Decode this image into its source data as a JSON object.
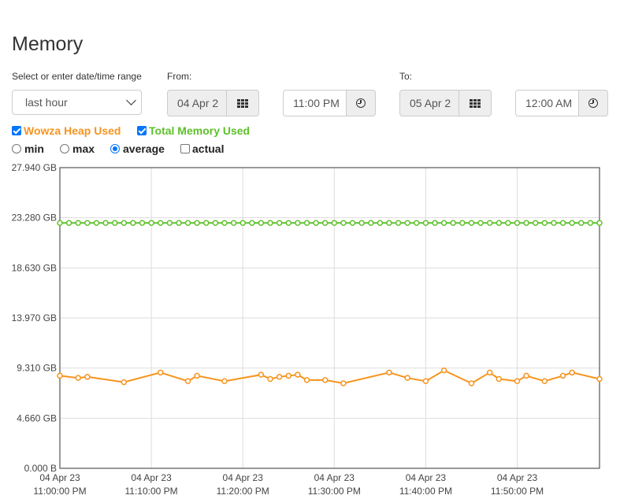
{
  "page": {
    "title": "Memory"
  },
  "range": {
    "label": "Select or enter date/time range",
    "selected": "last hour"
  },
  "from": {
    "label": "From:",
    "date": "04 Apr 2",
    "time": "11:00 PM"
  },
  "to": {
    "label": "To:",
    "date": "05 Apr 2",
    "time": "12:00 AM"
  },
  "series_toggles": [
    {
      "label": "Wowza Heap Used",
      "checked": true,
      "color": "#f7941d"
    },
    {
      "label": "Total Memory Used",
      "checked": true,
      "color": "#5ec12a"
    }
  ],
  "aggregation": {
    "options": [
      "min",
      "max",
      "average"
    ],
    "selected": "average",
    "actual_label": "actual"
  },
  "chart_data": {
    "type": "line",
    "y_ticks": [
      "27.940 GB",
      "23.280 GB",
      "18.630 GB",
      "13.970 GB",
      "9.310 GB",
      "4.660 GB",
      "0.000 B"
    ],
    "ylim": [
      0,
      27.94
    ],
    "x_ticks": [
      [
        "04 Apr 23",
        "11:00:00 PM"
      ],
      [
        "04 Apr 23",
        "11:10:00 PM"
      ],
      [
        "04 Apr 23",
        "11:20:00 PM"
      ],
      [
        "04 Apr 23",
        "11:30:00 PM"
      ],
      [
        "04 Apr 23",
        "11:40:00 PM"
      ],
      [
        "04 Apr 23",
        "11:50:00 PM"
      ]
    ],
    "xlim_minutes": [
      0,
      59
    ],
    "grid": true,
    "series": [
      {
        "name": "Total Memory Used",
        "color": "#5ec12a",
        "x": [
          0,
          1,
          2,
          3,
          4,
          5,
          6,
          7,
          8,
          9,
          10,
          11,
          12,
          13,
          14,
          15,
          16,
          17,
          18,
          19,
          20,
          21,
          22,
          23,
          24,
          25,
          26,
          27,
          28,
          29,
          30,
          31,
          32,
          33,
          34,
          35,
          36,
          37,
          38,
          39,
          40,
          41,
          42,
          43,
          44,
          45,
          46,
          47,
          48,
          49,
          50,
          51,
          52,
          53,
          54,
          55,
          56,
          57,
          58,
          59
        ],
        "y": [
          22.8,
          22.8,
          22.8,
          22.8,
          22.8,
          22.8,
          22.8,
          22.8,
          22.8,
          22.8,
          22.8,
          22.8,
          22.8,
          22.8,
          22.8,
          22.8,
          22.8,
          22.8,
          22.8,
          22.8,
          22.8,
          22.8,
          22.8,
          22.8,
          22.8,
          22.8,
          22.8,
          22.8,
          22.8,
          22.8,
          22.8,
          22.8,
          22.8,
          22.8,
          22.8,
          22.8,
          22.8,
          22.8,
          22.8,
          22.8,
          22.8,
          22.8,
          22.8,
          22.8,
          22.8,
          22.8,
          22.8,
          22.8,
          22.8,
          22.8,
          22.8,
          22.8,
          22.8,
          22.8,
          22.8,
          22.8,
          22.8,
          22.8,
          22.8,
          22.8
        ]
      },
      {
        "name": "Wowza Heap Used",
        "color": "#f7941d",
        "x": [
          0,
          2,
          3,
          7,
          11,
          14,
          15,
          18,
          22,
          23,
          24,
          25,
          26,
          27,
          29,
          31,
          36,
          38,
          40,
          42,
          45,
          47,
          48,
          50,
          51,
          53,
          55,
          56,
          59
        ],
        "y": [
          8.6,
          8.4,
          8.5,
          8.0,
          8.9,
          8.1,
          8.6,
          8.1,
          8.7,
          8.3,
          8.5,
          8.6,
          8.7,
          8.2,
          8.2,
          7.9,
          8.9,
          8.4,
          8.1,
          9.1,
          7.9,
          8.9,
          8.3,
          8.1,
          8.6,
          8.1,
          8.6,
          8.9,
          8.3
        ]
      }
    ]
  }
}
